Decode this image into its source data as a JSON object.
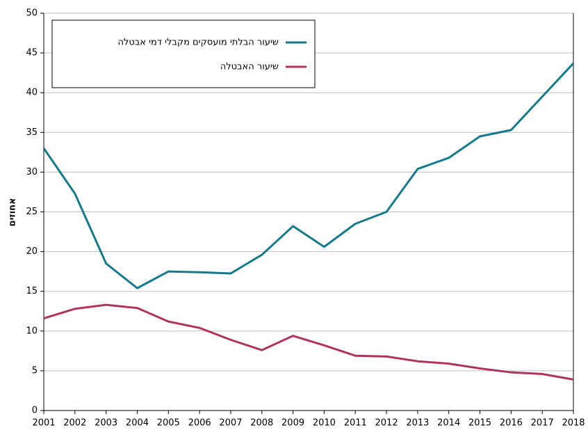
{
  "chart_data": {
    "type": "line",
    "y_label": "אחוזים",
    "x": [
      2001,
      2002,
      2003,
      2004,
      2005,
      2006,
      2007,
      2008,
      2009,
      2010,
      2011,
      2012,
      2013,
      2014,
      2015,
      2016,
      2017,
      2018
    ],
    "xlim": [
      2001,
      2018
    ],
    "xticks": [
      2001,
      2002,
      2003,
      2004,
      2005,
      2006,
      2007,
      2008,
      2009,
      2010,
      2011,
      2012,
      2013,
      2014,
      2015,
      2016,
      2017,
      2018
    ],
    "ylim": [
      0,
      50
    ],
    "yticks": [
      0,
      5,
      10,
      15,
      20,
      25,
      30,
      35,
      40,
      45,
      50
    ],
    "grid": true,
    "legend": "upper left",
    "series": [
      {
        "name": "שיעור הבלתי מועסקים מקבלי דמי אבטלה",
        "color": "#137a8c",
        "values": [
          33.0,
          27.3,
          18.5,
          15.4,
          17.5,
          17.4,
          17.25,
          19.6,
          23.2,
          20.6,
          23.5,
          25.0,
          30.4,
          31.8,
          34.5,
          35.3,
          39.5,
          43.7
        ]
      },
      {
        "name": "שיעור האבטלה",
        "color": "#b0345a",
        "values": [
          11.6,
          12.8,
          13.3,
          12.9,
          11.2,
          10.4,
          8.9,
          7.6,
          9.4,
          8.2,
          6.9,
          6.8,
          6.2,
          5.9,
          5.3,
          4.8,
          4.6,
          3.9
        ]
      }
    ]
  }
}
